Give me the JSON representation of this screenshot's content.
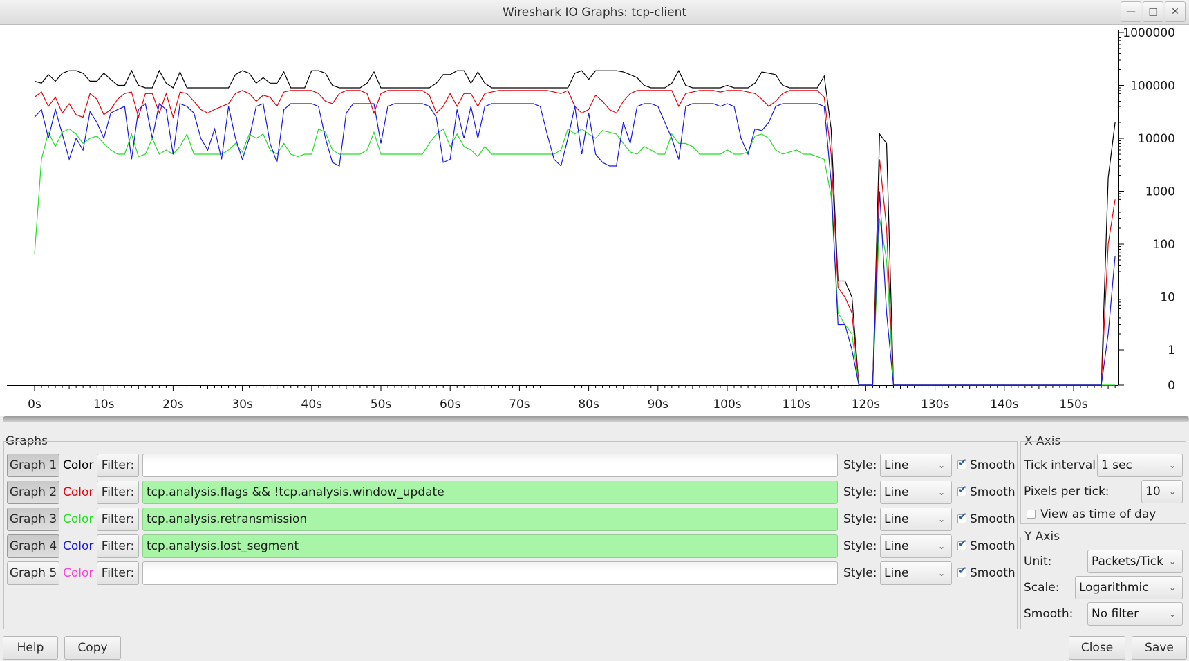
{
  "window": {
    "title": "Wireshark IO Graphs: tcp-client",
    "minimize_icon": "minimize-icon",
    "maximize_icon": "maximize-icon",
    "close_icon": "close-icon"
  },
  "chart_data": {
    "type": "line",
    "title": "",
    "xlabel": "",
    "ylabel": "",
    "y_scale": "log",
    "y_tick_labels": [
      "0",
      "1",
      "10",
      "100",
      "1000",
      "10000",
      "100000",
      "1000000"
    ],
    "x_tick_labels": [
      "0s",
      "10s",
      "20s",
      "30s",
      "40s",
      "50s",
      "60s",
      "70s",
      "80s",
      "90s",
      "100s",
      "110s",
      "120s",
      "130s",
      "140s",
      "150s"
    ],
    "xlim": [
      0,
      157
    ],
    "ylim": [
      0,
      1000000
    ],
    "grid": false,
    "x": [
      0,
      1,
      2,
      3,
      4,
      5,
      6,
      7,
      8,
      9,
      10,
      11,
      12,
      13,
      14,
      15,
      16,
      17,
      18,
      19,
      20,
      21,
      22,
      23,
      24,
      25,
      26,
      27,
      28,
      29,
      30,
      31,
      32,
      33,
      34,
      35,
      36,
      37,
      38,
      39,
      40,
      41,
      42,
      43,
      44,
      45,
      46,
      47,
      48,
      49,
      50,
      51,
      52,
      53,
      54,
      55,
      56,
      57,
      58,
      59,
      60,
      61,
      62,
      63,
      64,
      65,
      66,
      67,
      68,
      69,
      70,
      71,
      72,
      73,
      74,
      75,
      76,
      77,
      78,
      79,
      80,
      81,
      82,
      83,
      84,
      85,
      86,
      87,
      88,
      89,
      90,
      91,
      92,
      93,
      94,
      95,
      96,
      97,
      98,
      99,
      100,
      101,
      102,
      103,
      104,
      105,
      106,
      107,
      108,
      109,
      110,
      111,
      112,
      113,
      114,
      115,
      116,
      117,
      118,
      119,
      120,
      121,
      122,
      123,
      124,
      125,
      126,
      127,
      128,
      129,
      130,
      131,
      132,
      133,
      134,
      135,
      136,
      137,
      138,
      139,
      140,
      141,
      142,
      143,
      144,
      145,
      146,
      147,
      148,
      149,
      150,
      151,
      152,
      153,
      154,
      155,
      156
    ],
    "series": [
      {
        "color": "#000000",
        "values": [
          120000,
          110000,
          160000,
          120000,
          170000,
          190000,
          190000,
          170000,
          120000,
          120000,
          170000,
          130000,
          100000,
          100000,
          190000,
          100000,
          90000,
          90000,
          190000,
          110000,
          90000,
          180000,
          90000,
          90000,
          90000,
          90000,
          90000,
          90000,
          90000,
          160000,
          190000,
          170000,
          110000,
          140000,
          110000,
          110000,
          180000,
          90000,
          90000,
          90000,
          190000,
          190000,
          170000,
          100000,
          90000,
          90000,
          90000,
          90000,
          110000,
          180000,
          90000,
          90000,
          90000,
          90000,
          90000,
          90000,
          90000,
          90000,
          110000,
          160000,
          160000,
          190000,
          190000,
          110000,
          180000,
          110000,
          90000,
          90000,
          90000,
          90000,
          90000,
          90000,
          90000,
          90000,
          90000,
          90000,
          90000,
          90000,
          170000,
          190000,
          130000,
          190000,
          190000,
          190000,
          190000,
          180000,
          160000,
          140000,
          100000,
          90000,
          90000,
          90000,
          110000,
          190000,
          100000,
          90000,
          90000,
          90000,
          90000,
          90000,
          100000,
          90000,
          90000,
          90000,
          110000,
          180000,
          170000,
          160000,
          100000,
          90000,
          90000,
          90000,
          90000,
          90000,
          150000,
          15000,
          20,
          20,
          10,
          0,
          0,
          0,
          12000,
          8000,
          0,
          0,
          0,
          0,
          0,
          0,
          0,
          0,
          0,
          0,
          0,
          0,
          0,
          0,
          0,
          0,
          0,
          0,
          0,
          0,
          0,
          0,
          0,
          0,
          0,
          0,
          0,
          0,
          0,
          0,
          0,
          1800,
          20000
        ]
      },
      {
        "color": "#e8000a",
        "values": [
          60000,
          75000,
          40000,
          60000,
          30000,
          45000,
          28000,
          25000,
          70000,
          55000,
          28000,
          35000,
          55000,
          70000,
          75000,
          25000,
          70000,
          70000,
          30000,
          70000,
          25000,
          75000,
          70000,
          50000,
          35000,
          30000,
          35000,
          40000,
          45000,
          70000,
          80000,
          70000,
          50000,
          65000,
          60000,
          40000,
          75000,
          80000,
          80000,
          80000,
          80000,
          70000,
          50000,
          45000,
          70000,
          80000,
          80000,
          80000,
          70000,
          30000,
          70000,
          80000,
          80000,
          80000,
          80000,
          80000,
          80000,
          65000,
          30000,
          40000,
          70000,
          40000,
          70000,
          70000,
          40000,
          70000,
          75000,
          80000,
          80000,
          80000,
          80000,
          80000,
          80000,
          80000,
          80000,
          75000,
          70000,
          80000,
          40000,
          30000,
          35000,
          65000,
          50000,
          35000,
          30000,
          50000,
          70000,
          80000,
          80000,
          80000,
          80000,
          80000,
          80000,
          40000,
          70000,
          75000,
          80000,
          80000,
          80000,
          75000,
          80000,
          80000,
          80000,
          75000,
          70000,
          55000,
          40000,
          50000,
          70000,
          80000,
          80000,
          80000,
          80000,
          80000,
          60000,
          5000,
          15,
          10,
          5,
          0,
          0,
          0,
          4000,
          200,
          0,
          0,
          0,
          0,
          0,
          0,
          0,
          0,
          0,
          0,
          0,
          0,
          0,
          0,
          0,
          0,
          0,
          0,
          0,
          0,
          0,
          0,
          0,
          0,
          0,
          0,
          0,
          0,
          0,
          0,
          0,
          100,
          700
        ]
      },
      {
        "color": "#22e022",
        "values": [
          65,
          4000,
          13000,
          7000,
          13000,
          15000,
          12000,
          8000,
          10000,
          11000,
          8000,
          6000,
          5000,
          5000,
          12000,
          4500,
          5000,
          10000,
          5000,
          6000,
          5000,
          7000,
          12000,
          5000,
          5000,
          5000,
          5000,
          5000,
          6000,
          8000,
          5500,
          12000,
          10000,
          12000,
          6000,
          5000,
          8000,
          5000,
          4500,
          5000,
          5000,
          15000,
          13000,
          6000,
          5000,
          5000,
          5000,
          5000,
          6000,
          13000,
          5000,
          5000,
          5000,
          5000,
          5000,
          5000,
          5000,
          8000,
          12000,
          15000,
          7000,
          12000,
          7000,
          6000,
          4500,
          7000,
          5000,
          5000,
          5000,
          5000,
          5000,
          5000,
          5000,
          5000,
          5000,
          5000,
          6000,
          15000,
          12000,
          15000,
          12000,
          10000,
          14000,
          13000,
          12000,
          8000,
          5500,
          5000,
          7000,
          6000,
          5000,
          5000,
          12000,
          8000,
          8000,
          7000,
          5000,
          5000,
          5000,
          5000,
          6000,
          5000,
          5000,
          5500,
          11000,
          12000,
          10000,
          6000,
          5000,
          5500,
          6000,
          5000,
          5000,
          4500,
          4000,
          800,
          5,
          3,
          2,
          0,
          0,
          0,
          300,
          50,
          0,
          0,
          0,
          0,
          0,
          0,
          0,
          0,
          0,
          0,
          0,
          0,
          0,
          0,
          0,
          0,
          0,
          0,
          0,
          0,
          0,
          0,
          0,
          0,
          0,
          0,
          0,
          0,
          0,
          0,
          0,
          0,
          0
        ]
      },
      {
        "color": "#1818e0",
        "values": [
          25000,
          35000,
          10000,
          35000,
          12000,
          4000,
          10000,
          6000,
          32000,
          20000,
          10000,
          30000,
          35000,
          40000,
          4000,
          35000,
          45000,
          10000,
          45000,
          35000,
          5000,
          45000,
          40000,
          30000,
          10000,
          6000,
          15000,
          4000,
          40000,
          10000,
          4000,
          10000,
          40000,
          45000,
          8000,
          3500,
          35000,
          45000,
          45000,
          45000,
          45000,
          40000,
          10000,
          3500,
          3000,
          30000,
          45000,
          45000,
          45000,
          45000,
          8000,
          40000,
          45000,
          45000,
          45000,
          45000,
          45000,
          40000,
          25000,
          3500,
          4000,
          35000,
          10000,
          40000,
          10000,
          40000,
          45000,
          45000,
          45000,
          45000,
          45000,
          45000,
          45000,
          40000,
          12000,
          4000,
          3000,
          10000,
          40000,
          5000,
          30000,
          5000,
          3500,
          3000,
          3000,
          20000,
          8000,
          40000,
          45000,
          45000,
          40000,
          20000,
          10000,
          4000,
          40000,
          45000,
          45000,
          45000,
          45000,
          40000,
          45000,
          40000,
          10000,
          5000,
          15000,
          14000,
          20000,
          40000,
          45000,
          45000,
          45000,
          45000,
          45000,
          45000,
          40000,
          1500,
          3,
          3,
          1,
          0,
          0,
          0,
          1000,
          5,
          0,
          0,
          0,
          0,
          0,
          0,
          0,
          0,
          0,
          0,
          0,
          0,
          0,
          0,
          0,
          0,
          0,
          0,
          0,
          0,
          0,
          0,
          0,
          0,
          0,
          0,
          0,
          0,
          0,
          0,
          0,
          2,
          60
        ]
      }
    ]
  },
  "graphs_panel": {
    "label": "Graphs",
    "rows": [
      {
        "button": "Graph 1",
        "color_label": "Color",
        "color": "#000000",
        "filter_label": "Filter:",
        "filter": "",
        "style_label": "Style:",
        "style": "Line",
        "smooth_label": "Smooth",
        "pressed": true,
        "valid": false
      },
      {
        "button": "Graph 2",
        "color_label": "Color",
        "color": "#e8000a",
        "filter_label": "Filter:",
        "filter": "tcp.analysis.flags && !tcp.analysis.window_update",
        "style_label": "Style:",
        "style": "Line",
        "smooth_label": "Smooth",
        "pressed": true,
        "valid": true
      },
      {
        "button": "Graph 3",
        "color_label": "Color",
        "color": "#22e022",
        "filter_label": "Filter:",
        "filter": "tcp.analysis.retransmission",
        "style_label": "Style:",
        "style": "Line",
        "smooth_label": "Smooth",
        "pressed": true,
        "valid": true
      },
      {
        "button": "Graph 4",
        "color_label": "Color",
        "color": "#1818e0",
        "filter_label": "Filter:",
        "filter": "tcp.analysis.lost_segment",
        "style_label": "Style:",
        "style": "Line",
        "smooth_label": "Smooth",
        "pressed": true,
        "valid": true
      },
      {
        "button": "Graph 5",
        "color_label": "Color",
        "color": "#ff3fd8",
        "filter_label": "Filter:",
        "filter": "",
        "style_label": "Style:",
        "style": "Line",
        "smooth_label": "Smooth",
        "pressed": false,
        "valid": false
      }
    ]
  },
  "x_axis": {
    "label": "X Axis",
    "tick_interval_label": "Tick interval:",
    "tick_interval": "1 sec",
    "pixels_per_tick_label": "Pixels per tick:",
    "pixels_per_tick": "10",
    "time_of_day_label": "View as time of day"
  },
  "y_axis": {
    "label": "Y Axis",
    "unit_label": "Unit:",
    "unit": "Packets/Tick",
    "scale_label": "Scale:",
    "scale": "Logarithmic",
    "smooth_label": "Smooth:",
    "smooth": "No filter"
  },
  "buttons": {
    "help": "Help",
    "copy": "Copy",
    "close": "Close",
    "save": "Save"
  }
}
